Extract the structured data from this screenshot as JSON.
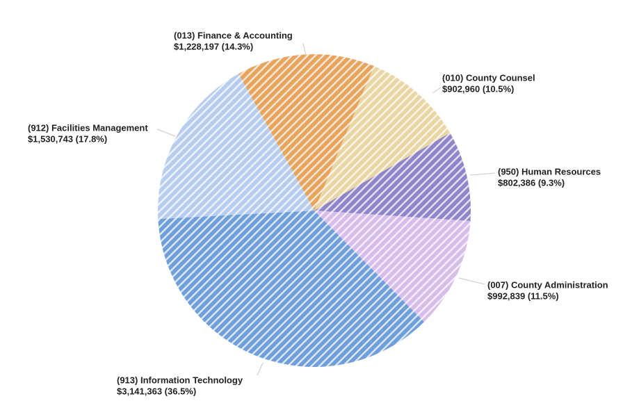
{
  "chart_data": {
    "type": "pie",
    "categories": [
      "(013) Finance & Accounting",
      "(010) County Counsel",
      "(950) Human Resources",
      "(007) County Administration",
      "(913) Information Technology",
      "(912) Facilities Management"
    ],
    "values": [
      1228197,
      902960,
      802386,
      992839,
      3141363,
      1530743
    ],
    "value_labels": [
      "$1,228,197 (14.3%)",
      "$902,960 (10.5%)",
      "$802,386 (9.3%)",
      "$992,839 (11.5%)",
      "$3,141,363 (36.5%)",
      "$1,530,743 (17.8%)"
    ],
    "colors": [
      "#e6a45c",
      "#e9d6a4",
      "#8f86c9",
      "#d6bdea",
      "#6f9fdb",
      "#b7cdef"
    ]
  }
}
